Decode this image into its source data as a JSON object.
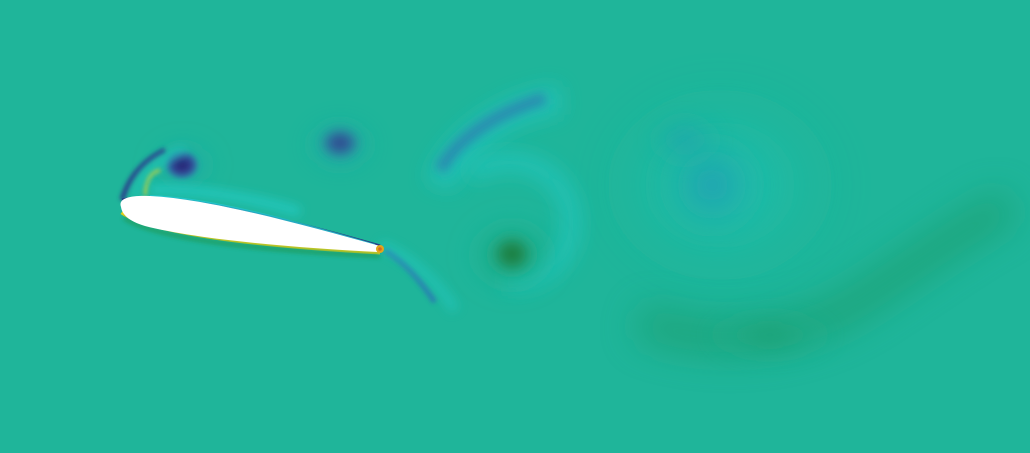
{
  "visualization": {
    "subject": "vorticity-field-around-airfoil",
    "colors": {
      "background": "#1fb59a",
      "negative_strong": "#2a2c7a",
      "negative_mid": "#2f5f9e",
      "negative_soft": "#25a0b0",
      "positive_mid": "#1d8a57",
      "positive_strong": "#1e7a3f",
      "edge_yellow": "#e6d21a",
      "edge_orange": "#d9671e",
      "airfoil_fill": "#ffffff"
    }
  }
}
